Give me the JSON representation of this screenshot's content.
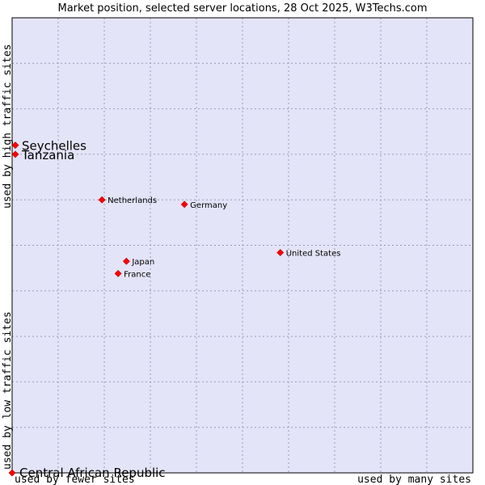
{
  "chart_data": {
    "type": "scatter",
    "title": "Market position, selected server locations, 28 Oct 2025, W3Techs.com",
    "xlabel_low": "used by fewer sites",
    "xlabel_high": "used by many sites",
    "ylabel_low": "used by low traffic sites",
    "ylabel_high": "used by high traffic sites",
    "grid": true,
    "xlim": [
      0,
      10
    ],
    "ylim": [
      0,
      10
    ],
    "point_color": "#ff0000",
    "plot_background": "#e4e4f8",
    "points": [
      {
        "name": "Seychelles",
        "x": 0.07,
        "y": 7.2,
        "size": "large"
      },
      {
        "name": "Tanzania",
        "x": 0.07,
        "y": 7.0,
        "size": "large"
      },
      {
        "name": "Netherlands",
        "x": 1.95,
        "y": 6.0,
        "size": "small"
      },
      {
        "name": "Germany",
        "x": 3.74,
        "y": 5.9,
        "size": "small"
      },
      {
        "name": "United States",
        "x": 5.82,
        "y": 4.84,
        "size": "small"
      },
      {
        "name": "Japan",
        "x": 2.48,
        "y": 4.65,
        "size": "small"
      },
      {
        "name": "France",
        "x": 2.3,
        "y": 4.38,
        "size": "small"
      }
    ],
    "corner_point": {
      "name": "Central African Republic",
      "x": 0,
      "y": 0,
      "size": "large"
    }
  }
}
